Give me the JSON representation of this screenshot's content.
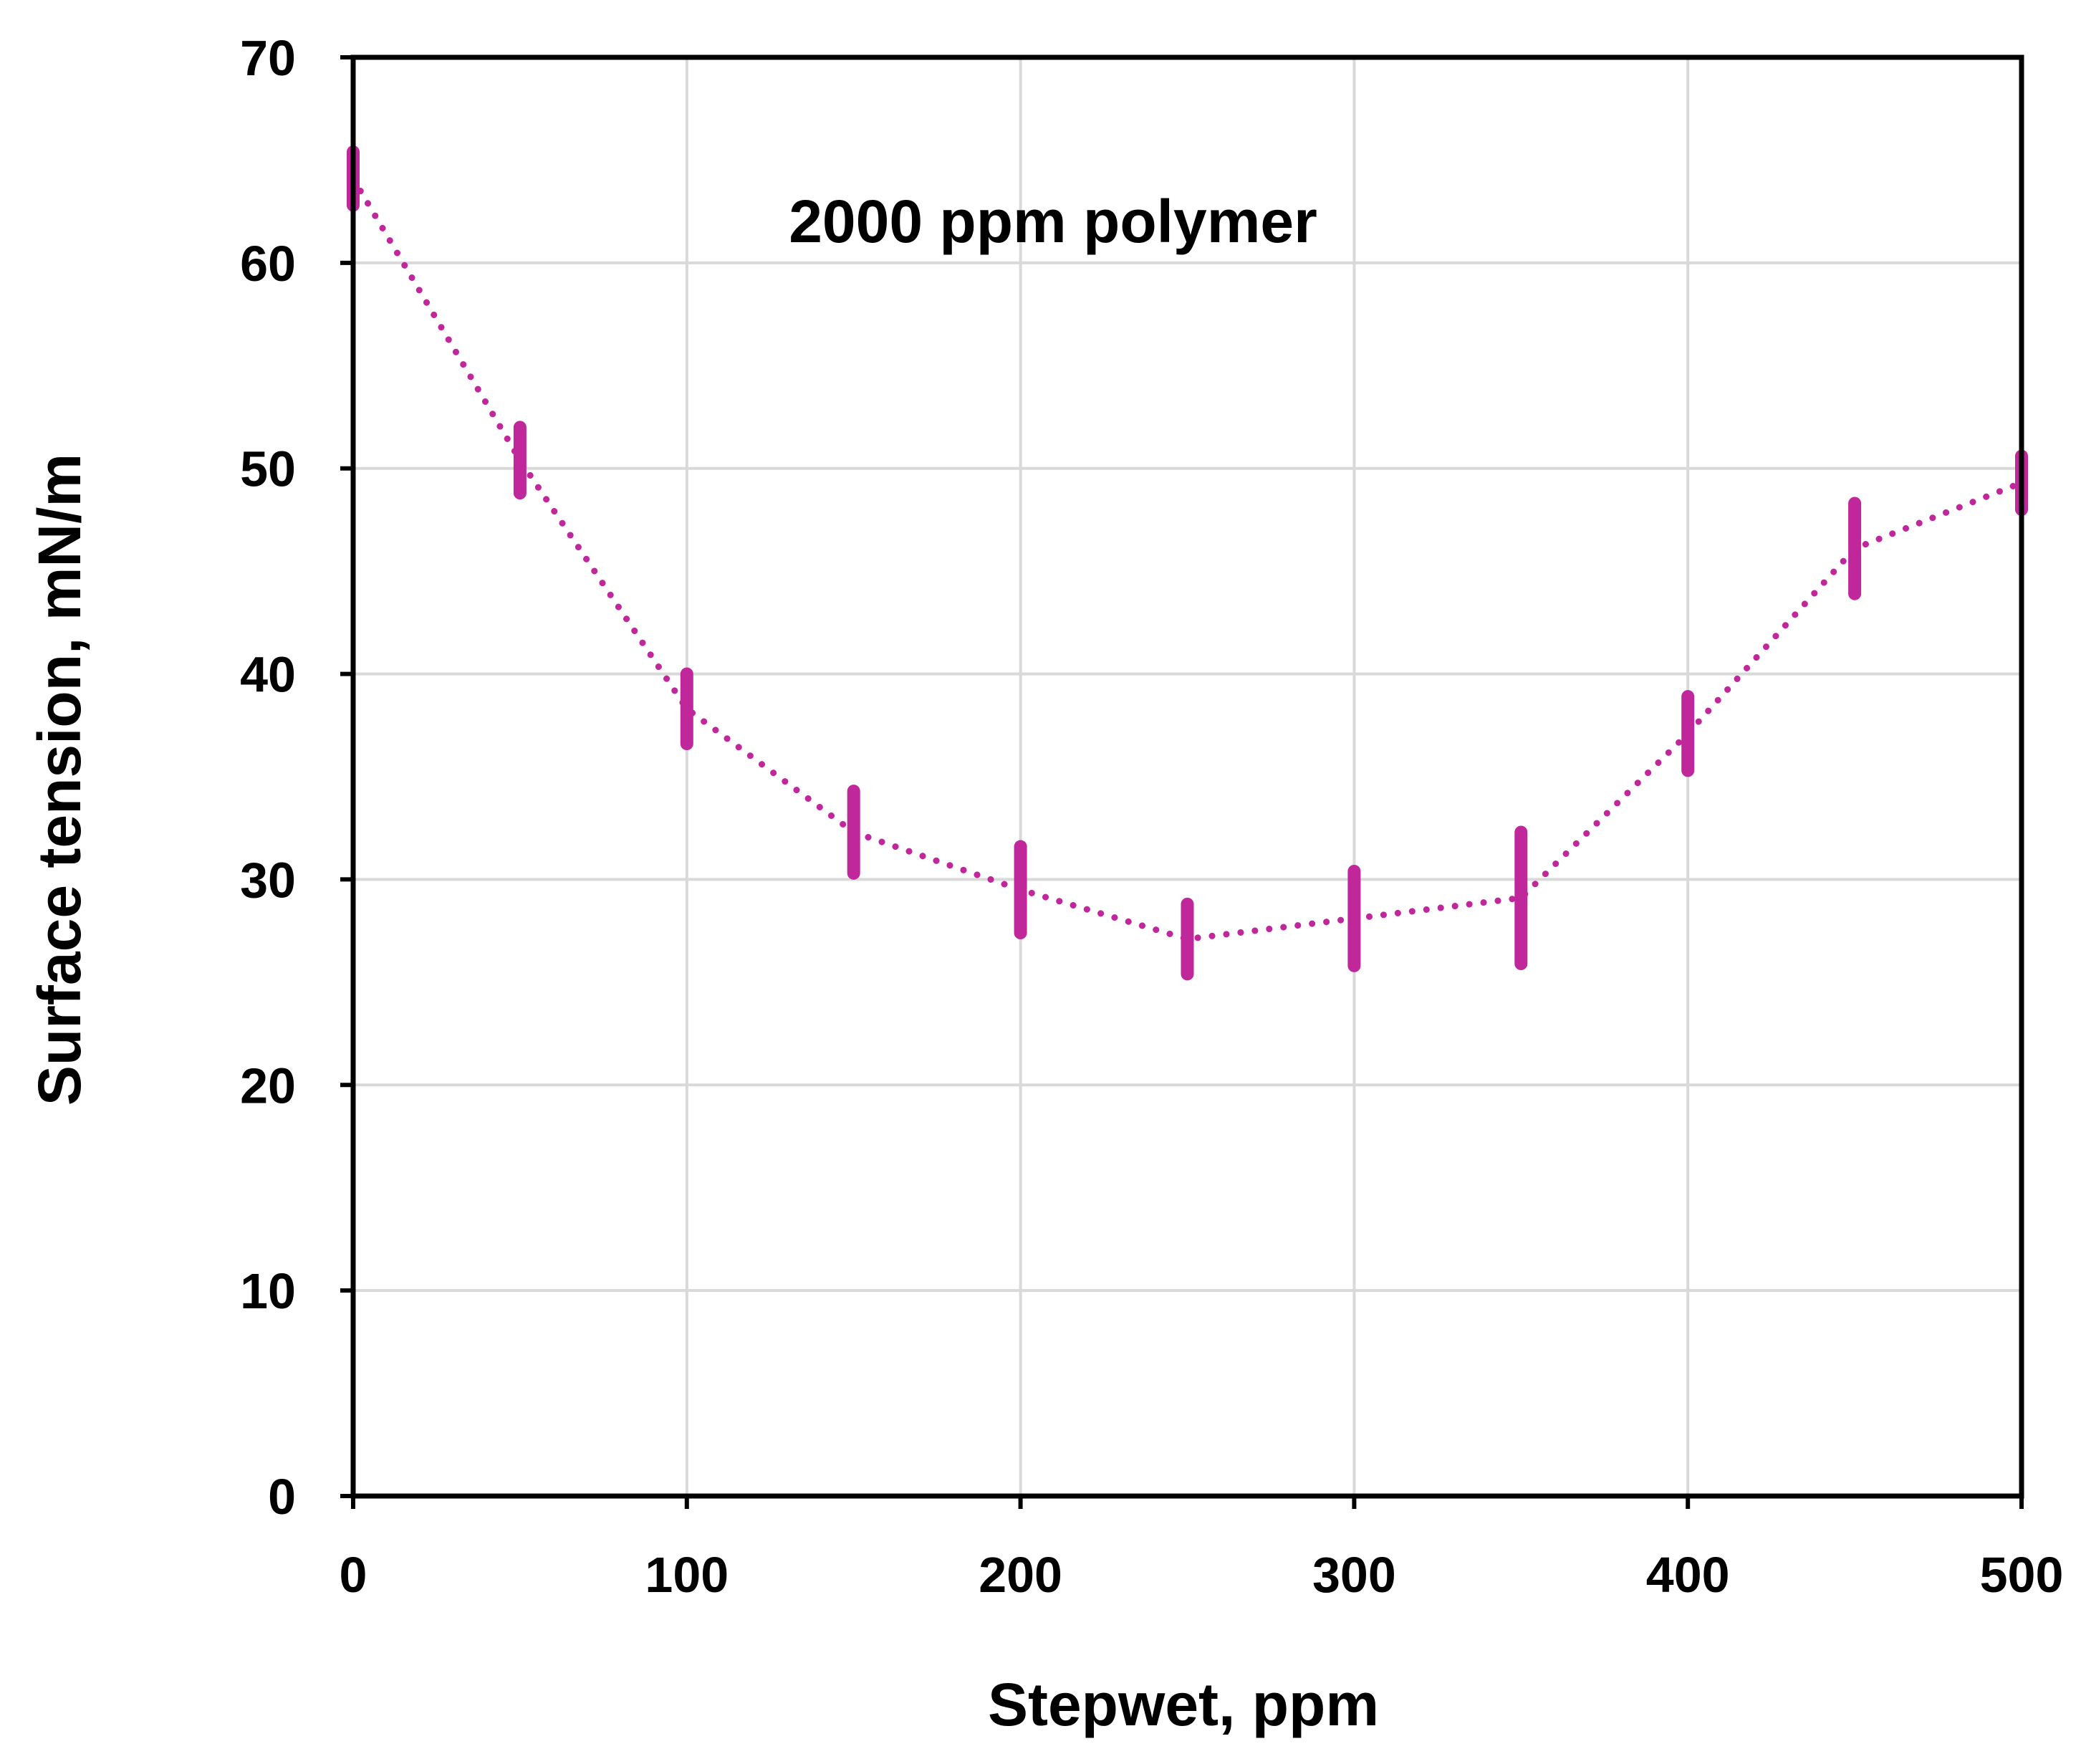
{
  "chart_data": {
    "type": "line",
    "title": "",
    "annotation": "2000 ppm polymer",
    "xlabel": "Stepwet, ppm",
    "ylabel": "Surface tension, mN/m",
    "xlim": [
      0,
      500
    ],
    "ylim": [
      0,
      70
    ],
    "x_ticks": [
      0,
      100,
      200,
      300,
      400,
      500
    ],
    "y_ticks": [
      0,
      10,
      20,
      30,
      40,
      50,
      60,
      70
    ],
    "x_tick_labels": [
      "0",
      "100",
      "200",
      "300",
      "400",
      "500"
    ],
    "y_tick_labels": [
      "0",
      "10",
      "20",
      "30",
      "40",
      "50",
      "60",
      "70"
    ],
    "grid": true,
    "legend": "none",
    "line_style": "dotted",
    "series": [
      {
        "x": [
          0,
          50,
          100,
          150,
          200,
          250,
          300,
          350,
          400,
          450,
          500
        ],
        "y": [
          64.1,
          50.4,
          38.3,
          32.3,
          29.5,
          27.1,
          28.1,
          29.1,
          37.1,
          46.1,
          49.3
        ],
        "error": [
          1.3,
          1.6,
          1.7,
          2.0,
          2.1,
          1.7,
          2.3,
          3.2,
          1.8,
          2.2,
          1.3
        ],
        "color": "#c0279a",
        "error_color": "#c0279a"
      }
    ],
    "colors": {
      "series": "#c0279a",
      "grid": "#d9d9d9",
      "axes": "#000000"
    }
  }
}
